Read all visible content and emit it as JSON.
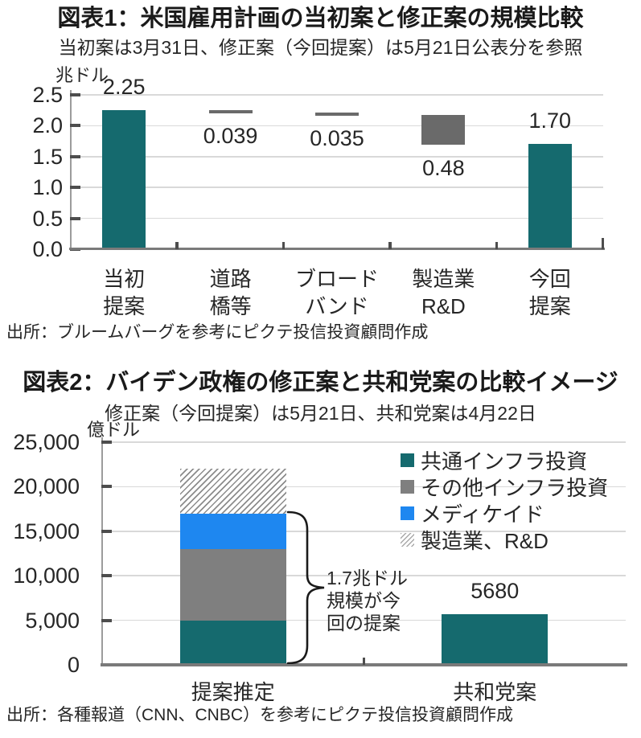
{
  "colors": {
    "teal": "#156a6e",
    "gray": "#6a6a6a",
    "gray2": "#7f7f7f",
    "blue": "#1e87f0",
    "grid": "#d9d9d9",
    "spine": "#9c9c9c",
    "tick": "#4d4d4d",
    "axis": "#7a7a7a",
    "text": "#262626"
  },
  "chart_data": [
    {
      "type": "bar",
      "variant": "waterfall",
      "title": "図表1：米国雇用計画の当初案と修正案の規模比較",
      "subtitle": "当初案は3月31日、修正案（今回提案）は5月21日公表分を参照",
      "unit": "兆ドル",
      "source": "出所：ブルームバーグを参考にピクテ投信投資顧問作成",
      "categories": [
        [
          "当初",
          "提案"
        ],
        [
          "道路",
          "橋等"
        ],
        [
          "ブロード",
          "バンド"
        ],
        [
          "製造業",
          "R&D"
        ],
        [
          "今回",
          "提案"
        ]
      ],
      "bars": [
        {
          "category": "当初提案",
          "value": 2.25,
          "from": 0,
          "to": 2.25,
          "color_key": "teal",
          "label": "2.25",
          "label_pos": "above"
        },
        {
          "category": "道路橋等",
          "value": 0.039,
          "from": 2.211,
          "to": 2.25,
          "color_key": "gray",
          "label": "0.039",
          "label_pos": "below"
        },
        {
          "category": "ブロードバンド",
          "value": 0.035,
          "from": 2.176,
          "to": 2.211,
          "color_key": "gray",
          "label": "0.035",
          "label_pos": "below"
        },
        {
          "category": "製造業R&D",
          "value": 0.48,
          "from": 1.696,
          "to": 2.176,
          "color_key": "gray",
          "label": "0.48",
          "label_pos": "below"
        },
        {
          "category": "今回提案",
          "value": 1.7,
          "from": 0,
          "to": 1.7,
          "color_key": "teal",
          "label": "1.70",
          "label_pos": "above"
        }
      ],
      "yticks": [
        2.5,
        2.0,
        1.5,
        1.0,
        0.5,
        0.0
      ],
      "ytick_labels": [
        "2.5",
        "2.0",
        "1.5",
        "1.0",
        "0.5",
        "0.0"
      ],
      "ylim": [
        0,
        2.5
      ],
      "grid": true
    },
    {
      "type": "bar",
      "variant": "stacked",
      "title": "図表2：バイデン政権の修正案と共和党案の比較イメージ",
      "subtitle": "修正案（今回提案）は5月21日、共和党案は4月22日",
      "unit": "億ドル",
      "source": "出所：各種報道（CNN、CNBC）を参考にピクテ投信投資顧問作成",
      "categories": [
        "提案推定",
        "共和党案"
      ],
      "series": [
        {
          "name": "共通インフラ投資",
          "color_key": "teal",
          "values": [
            5000,
            5680
          ]
        },
        {
          "name": "その他インフラ投資",
          "color_key": "gray2",
          "values": [
            8000,
            0
          ]
        },
        {
          "name": "メディケイド",
          "color_key": "blue",
          "values": [
            4000,
            0
          ]
        },
        {
          "name": "製造業、R&D",
          "color_key": "hatch",
          "values": [
            5000,
            0
          ]
        }
      ],
      "data_labels": [
        {
          "text": "5680",
          "category_index": 1
        }
      ],
      "annotation": {
        "lines": [
          "1.7兆ドル",
          "規模が今",
          "回の提案"
        ],
        "brace_value_from": 0,
        "brace_value_to": 17000
      },
      "yticks": [
        25000,
        20000,
        15000,
        10000,
        5000,
        0
      ],
      "ytick_labels": [
        "25,000",
        "20,000",
        "15,000",
        "10,000",
        "5,000",
        "0"
      ],
      "ylim": [
        0,
        25000
      ],
      "grid": true,
      "legend_position": "top-right"
    }
  ]
}
